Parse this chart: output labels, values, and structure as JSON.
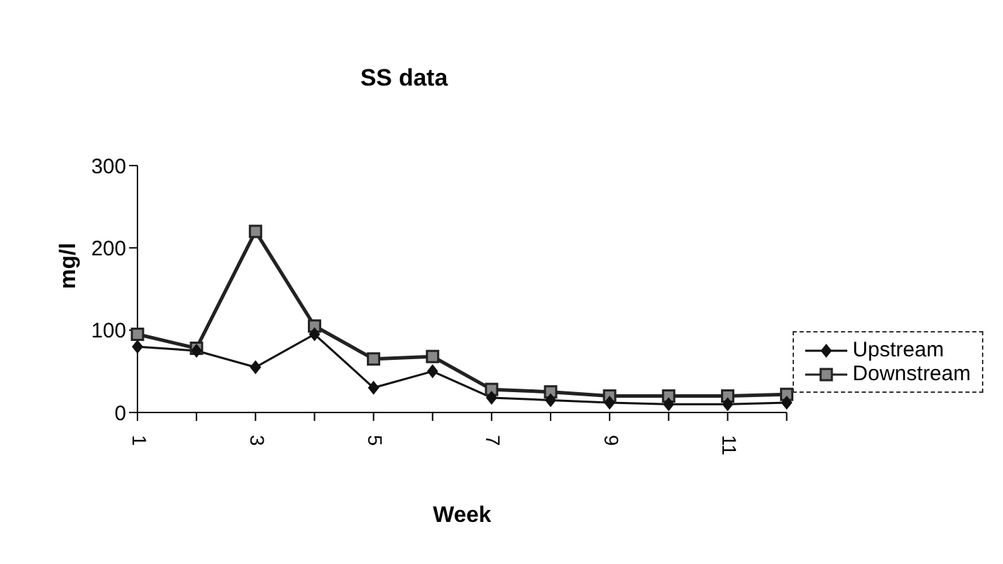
{
  "chart_data": {
    "type": "line",
    "title": "SS data",
    "xlabel": "Week",
    "ylabel": "mg/l",
    "categories": [
      "1",
      null,
      "3",
      null,
      "5",
      null,
      "7",
      null,
      "9",
      null,
      "11",
      null
    ],
    "series": [
      {
        "name": "Upstream",
        "color": "#111111",
        "marker": "diamond",
        "values": [
          80,
          75,
          55,
          95,
          30,
          50,
          18,
          15,
          12,
          10,
          10,
          12
        ]
      },
      {
        "name": "Downstream",
        "color": "#222222",
        "marker": "square",
        "values": [
          95,
          78,
          220,
          105,
          65,
          68,
          28,
          25,
          20,
          20,
          20,
          22
        ]
      }
    ],
    "ylim": [
      0,
      300
    ],
    "yticks": [
      0,
      100,
      200,
      300
    ],
    "grid": false,
    "legend": "right"
  }
}
